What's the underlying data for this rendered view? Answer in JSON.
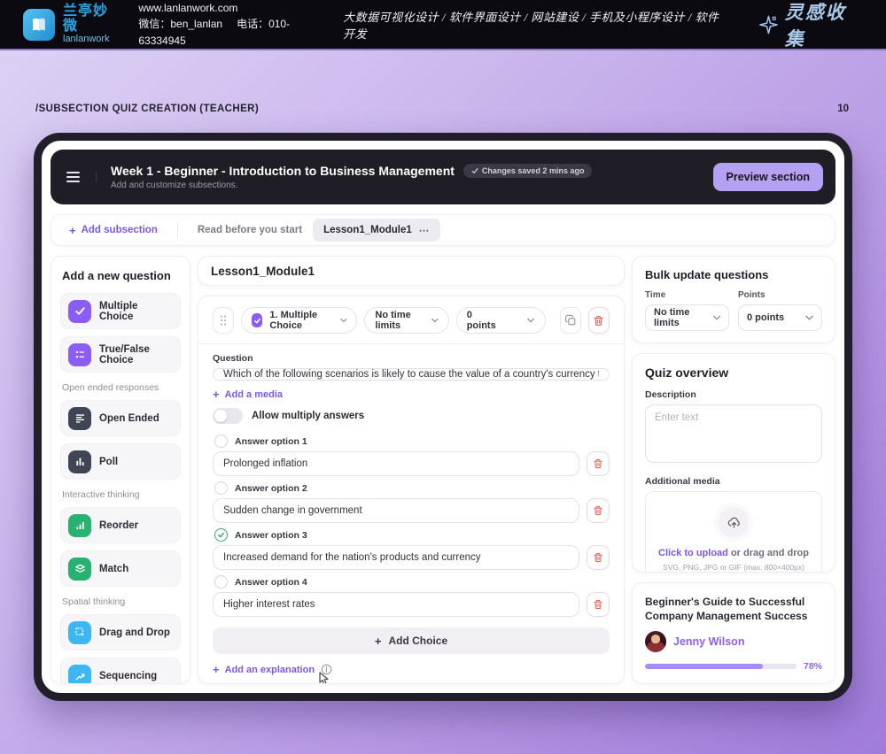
{
  "header": {
    "brand_zh": "兰亭妙微",
    "brand_en": "lanlanwork",
    "website": "www.lanlanwork.com",
    "wechat": "微信：ben_lanlan",
    "phone": "电话：010-63334945",
    "services": "大数据可视化设计 / 软件界面设计 / 网站建设 / 手机及小程序设计 / 软件开发",
    "collection": "灵感收集"
  },
  "slide": {
    "title": "/SUBSECTION QUIZ CREATION (TEACHER)",
    "page": "10"
  },
  "app": {
    "topbar": {
      "title": "Week 1 - Beginner - Introduction to Business Management",
      "saved_badge": "Changes saved 2 mins ago",
      "subtitle": "Add and customize subsections.",
      "preview_button": "Preview section"
    },
    "tabs": {
      "add_label": "Add subsection",
      "items": [
        {
          "label": "Read before you start",
          "active": false
        },
        {
          "label": "Lesson1_Module1",
          "active": true
        }
      ],
      "overflow": "⋯"
    },
    "sidebar": {
      "heading": "Add a new question",
      "groups": [
        {
          "label": "",
          "items": [
            {
              "label": "Multiple Choice",
              "icon": "checkbox-check-icon",
              "color": "#8b5cf6"
            },
            {
              "label": "True/False Choice",
              "icon": "list-icon",
              "color": "#8b5cf6"
            }
          ]
        },
        {
          "label": "Open ended responses",
          "items": [
            {
              "label": "Open Ended",
              "icon": "text-lines-icon",
              "color": "#3f4553"
            },
            {
              "label": "Poll",
              "icon": "bar-chart-icon",
              "color": "#3f4553"
            }
          ]
        },
        {
          "label": "Interactive thinking",
          "items": [
            {
              "label": "Reorder",
              "icon": "bars-ascending-icon",
              "color": "#27b272"
            },
            {
              "label": "Match",
              "icon": "layers-icon",
              "color": "#27b272"
            }
          ]
        },
        {
          "label": "Spatial thinking",
          "items": [
            {
              "label": "Drag and Drop",
              "icon": "drag-drop-icon",
              "color": "#3db7f4"
            },
            {
              "label": "Sequencing",
              "icon": "trend-up-icon",
              "color": "#3db7f4"
            }
          ]
        }
      ]
    },
    "editor": {
      "module_title": "Lesson1_Module1",
      "question_card": {
        "type_select": "1. Multiple Choice",
        "time_select": "No time limits",
        "points_select": "0 points",
        "question_label": "Question",
        "question_text": "Which of the following scenarios is likely to cause the value of a country's currency to rise?",
        "add_media": "Add a media",
        "allow_multiple_label": "Allow multiply answers",
        "allow_multiple_on": false,
        "options": [
          {
            "label": "Answer option 1",
            "value": "Prolonged inflation",
            "correct": false
          },
          {
            "label": "Answer option 2",
            "value": "Sudden change in government",
            "correct": false
          },
          {
            "label": "Answer option 3",
            "value": "Increased demand for the nation's products and currency",
            "correct": true
          },
          {
            "label": "Answer option 4",
            "value": "Higher interest rates",
            "correct": false
          }
        ],
        "add_choice": "Add Choice",
        "add_explanation": "Add an explanation"
      }
    },
    "right_panel": {
      "bulk": {
        "heading": "Bulk update questions",
        "time_label": "Time",
        "time_value": "No time limits",
        "points_label": "Points",
        "points_value": "0 points"
      },
      "overview": {
        "heading": "Quiz overview",
        "description_label": "Description",
        "description_placeholder": "Enter text",
        "media_label": "Additional media",
        "upload_link": "Click to upload",
        "upload_rest": " or drag and drop",
        "upload_hint": "SVG, PNG, JPG or GIF (max. 800×400px)"
      },
      "course": {
        "title": "Beginner's Guide to Successful Company Management Success",
        "author": "Jenny Wilson",
        "progress": 78,
        "progress_label": "78%"
      }
    }
  },
  "colors": {
    "accent_purple": "#7b57f0",
    "light_purple_button": "#b5a1f1",
    "icon_purple": "#8b5cf6",
    "icon_dark": "#3f4553",
    "icon_green": "#27b272",
    "icon_blue": "#3db7f4",
    "danger_red": "#e4645c",
    "progress_fill": "#a78bfa",
    "topbar_dark": "#1f1d26",
    "header_dark": "#0b0a10"
  }
}
